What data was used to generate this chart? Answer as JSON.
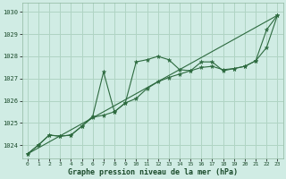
{
  "title": "Graphe pression niveau de la mer (hPa)",
  "background_color": "#d0ece4",
  "grid_color": "#b0d4c4",
  "line_color": "#2d6a3f",
  "xlim": [
    -0.5,
    23.5
  ],
  "ylim": [
    1023.4,
    1030.4
  ],
  "yticks": [
    1024,
    1025,
    1026,
    1027,
    1028,
    1029,
    1030
  ],
  "xticks": [
    0,
    1,
    2,
    3,
    4,
    5,
    6,
    7,
    8,
    9,
    10,
    11,
    12,
    13,
    14,
    15,
    16,
    17,
    18,
    19,
    20,
    21,
    22,
    23
  ],
  "wavy_x": [
    0,
    1,
    2,
    3,
    4,
    5,
    6,
    7,
    8,
    9,
    10,
    11,
    12,
    13,
    14,
    15,
    16,
    17,
    18,
    19,
    20,
    21,
    22,
    23
  ],
  "wavy_y": [
    1023.6,
    1024.0,
    1024.45,
    1024.4,
    1024.45,
    1024.85,
    1025.3,
    1027.3,
    1025.5,
    1025.9,
    1027.75,
    1027.85,
    1028.0,
    1027.85,
    1027.4,
    1027.35,
    1027.75,
    1027.75,
    1027.35,
    1027.45,
    1027.55,
    1027.8,
    1029.2,
    1029.85
  ],
  "smooth_x": [
    0,
    1,
    2,
    3,
    4,
    5,
    6,
    7,
    8,
    9,
    10,
    11,
    12,
    13,
    14,
    15,
    16,
    17,
    18,
    19,
    20,
    21,
    22,
    23
  ],
  "smooth_y": [
    1023.6,
    1024.0,
    1024.45,
    1024.4,
    1024.45,
    1024.85,
    1025.25,
    1025.35,
    1025.5,
    1025.9,
    1026.1,
    1026.55,
    1026.85,
    1027.05,
    1027.2,
    1027.35,
    1027.5,
    1027.55,
    1027.4,
    1027.45,
    1027.55,
    1027.8,
    1028.4,
    1029.85
  ],
  "trend_x": [
    0,
    23
  ],
  "trend_y": [
    1023.6,
    1029.85
  ],
  "title_fontsize": 6.0,
  "tick_fontsize": 4.5,
  "ytick_fontsize": 5.0
}
